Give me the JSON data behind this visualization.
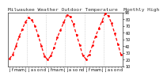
{
  "title": "Milwaukee Weather Outdoor Temperature  Monthly High",
  "background_color": "#ffffff",
  "plot_bg_color": "#ffffff",
  "line_color": "#ff0000",
  "marker_color": "#ff0000",
  "grid_color": "#aaaaaa",
  "text_color": "#000000",
  "title_color": "#333333",
  "border_color": "#333333",
  "ylim": [
    10,
    90
  ],
  "yticks": [
    10,
    20,
    30,
    40,
    50,
    60,
    70,
    80,
    90
  ],
  "xlim": [
    0.5,
    36.5
  ],
  "months": [
    1,
    2,
    3,
    4,
    5,
    6,
    7,
    8,
    9,
    10,
    11,
    12,
    13,
    14,
    15,
    16,
    17,
    18,
    19,
    20,
    21,
    22,
    23,
    24,
    25,
    26,
    27,
    28,
    29,
    30,
    31,
    32,
    33,
    34,
    35,
    36
  ],
  "values": [
    22,
    27,
    40,
    54,
    65,
    76,
    82,
    79,
    70,
    56,
    40,
    25,
    20,
    26,
    38,
    53,
    64,
    75,
    86,
    84,
    73,
    57,
    42,
    26,
    21,
    28,
    41,
    55,
    66,
    77,
    88,
    85,
    74,
    59,
    43,
    27
  ],
  "vgrid_positions": [
    6.5,
    12.5,
    18.5,
    24.5,
    30.5
  ],
  "xtick_positions": [
    1,
    2,
    3,
    4,
    5,
    6,
    7,
    8,
    9,
    10,
    11,
    12,
    13,
    14,
    15,
    16,
    17,
    18,
    19,
    20,
    21,
    22,
    23,
    24,
    25,
    26,
    27,
    28,
    29,
    30,
    31,
    32,
    33,
    34,
    35,
    36
  ],
  "xtick_labels": [
    "j",
    "f",
    "m",
    "a",
    "m",
    "j",
    "j",
    "a",
    "s",
    "o",
    "n",
    "d",
    "j",
    "f",
    "m",
    "a",
    "m",
    "j",
    "j",
    "a",
    "s",
    "o",
    "n",
    "d",
    "j",
    "f",
    "m",
    "a",
    "m",
    "j",
    "j",
    "a",
    "s",
    "o",
    "n",
    "d"
  ],
  "title_fontsize": 4.5,
  "axis_fontsize": 3.5,
  "linewidth": 0.9
}
